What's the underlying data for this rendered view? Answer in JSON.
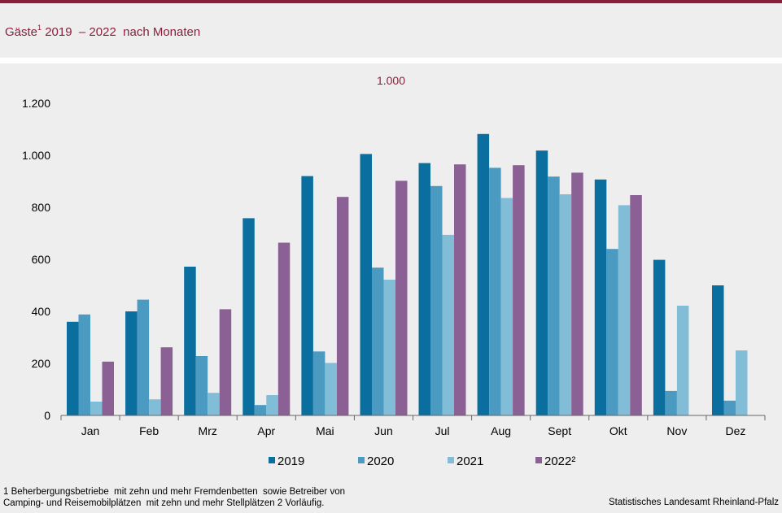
{
  "header": {
    "title_main": "Gäste",
    "title_sup": "1",
    "title_rest": " 2019  – 2022  nach Monaten"
  },
  "chart_data": {
    "type": "bar",
    "unit_label": "1.000",
    "categories": [
      "Jan",
      "Feb",
      "Mrz",
      "Apr",
      "Mai",
      "Jun",
      "Jul",
      "Aug",
      "Sept",
      "Okt",
      "Nov",
      "Dez"
    ],
    "ylim": [
      0,
      1200
    ],
    "yticks": [
      0,
      200,
      400,
      600,
      800,
      1000,
      1200
    ],
    "ytick_labels": [
      "0",
      "200",
      "400",
      "600",
      "800",
      "1.000",
      "1.200"
    ],
    "grid": false,
    "legend_position": "bottom",
    "series": [
      {
        "name": "2019",
        "legend_label": "2019",
        "color": "#0a6e9e",
        "values": [
          360,
          400,
          572,
          758,
          920,
          1005,
          970,
          1082,
          1018,
          907,
          598,
          500
        ]
      },
      {
        "name": "2020",
        "legend_label": "2020",
        "color": "#4a9ac2",
        "values": [
          388,
          445,
          228,
          40,
          246,
          568,
          882,
          952,
          918,
          640,
          94,
          57
        ]
      },
      {
        "name": "2021",
        "legend_label": "2021",
        "color": "#82bdd8",
        "values": [
          53,
          62,
          87,
          78,
          202,
          522,
          694,
          836,
          850,
          808,
          422,
          250
        ]
      },
      {
        "name": "2022",
        "legend_label": "2022²",
        "color": "#8b6094",
        "values": [
          207,
          262,
          408,
          664,
          840,
          902,
          965,
          962,
          933,
          847,
          null,
          null
        ]
      }
    ]
  },
  "footer": {
    "footnote_line1": "1 Beherbergungsbetriebe  mit zehn und mehr Fremdenbetten  sowie Betreiber von",
    "footnote_line2": "Camping- und Reisemobilplätzen  mit zehn und mehr Stellplätzen 2 Vorläufig.",
    "source": "Statistisches Landesamt Rheinland-Pfalz"
  }
}
